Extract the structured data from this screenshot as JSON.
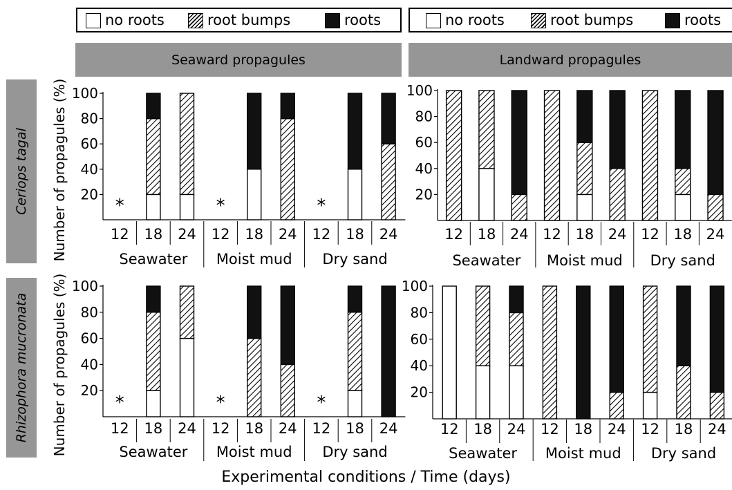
{
  "legend": {
    "no_roots": "no roots",
    "root_bumps": "root bumps",
    "roots": "roots"
  },
  "columns": [
    "Seaward propagules",
    "Landward propagules"
  ],
  "rows": [
    "Ceriops tagal",
    "Rhizophora mucronata"
  ],
  "ylabel": "Number of propagules (%)",
  "xtitle": "Experimental conditions / Time (days)",
  "missing_marker": "*",
  "colors": {
    "no_roots": "#ffffff",
    "roots": "#111111",
    "bumps_hatch": "#000000",
    "header_bg": "#969696"
  },
  "chart_data": [
    {
      "type": "bar",
      "stacked": true,
      "title": "",
      "row": "Ceriops tagal",
      "column": "Seaward propagules",
      "groups": [
        "Seawater",
        "Moist mud",
        "Dry sand"
      ],
      "categories": [
        "12",
        "18",
        "24",
        "12",
        "18",
        "24",
        "12",
        "18",
        "24"
      ],
      "ylim": [
        0,
        100
      ],
      "yticks": [
        20,
        40,
        60,
        80,
        100
      ],
      "ylabel": "Number of propagules (%)",
      "missing": [
        true,
        false,
        false,
        true,
        false,
        false,
        true,
        false,
        false
      ],
      "series": [
        {
          "name": "no roots",
          "values": [
            0,
            20,
            20,
            0,
            40,
            0,
            0,
            40,
            0
          ]
        },
        {
          "name": "root bumps",
          "values": [
            0,
            60,
            80,
            0,
            0,
            80,
            0,
            0,
            60
          ]
        },
        {
          "name": "roots",
          "values": [
            0,
            20,
            0,
            0,
            60,
            20,
            0,
            60,
            40
          ]
        }
      ]
    },
    {
      "type": "bar",
      "stacked": true,
      "title": "",
      "row": "Ceriops tagal",
      "column": "Landward propagules",
      "groups": [
        "Seawater",
        "Moist mud",
        "Dry sand"
      ],
      "categories": [
        "12",
        "18",
        "24",
        "12",
        "18",
        "24",
        "12",
        "18",
        "24"
      ],
      "ylim": [
        0,
        100
      ],
      "yticks": [
        20,
        40,
        60,
        80,
        100
      ],
      "ylabel": "",
      "missing": [
        false,
        false,
        false,
        false,
        false,
        false,
        false,
        false,
        false
      ],
      "series": [
        {
          "name": "no roots",
          "values": [
            0,
            40,
            0,
            0,
            20,
            0,
            0,
            20,
            0
          ]
        },
        {
          "name": "root bumps",
          "values": [
            100,
            60,
            20,
            100,
            40,
            40,
            100,
            20,
            20
          ]
        },
        {
          "name": "roots",
          "values": [
            0,
            0,
            80,
            0,
            40,
            60,
            0,
            60,
            80
          ]
        }
      ]
    },
    {
      "type": "bar",
      "stacked": true,
      "title": "",
      "row": "Rhizophora mucronata",
      "column": "Seaward propagules",
      "groups": [
        "Seawater",
        "Moist mud",
        "Dry sand"
      ],
      "categories": [
        "12",
        "18",
        "24",
        "12",
        "18",
        "24",
        "12",
        "18",
        "24"
      ],
      "ylim": [
        0,
        100
      ],
      "yticks": [
        20,
        40,
        60,
        80,
        100
      ],
      "ylabel": "Number of propagules (%)",
      "missing": [
        true,
        false,
        false,
        true,
        false,
        false,
        true,
        false,
        false
      ],
      "series": [
        {
          "name": "no roots",
          "values": [
            0,
            20,
            60,
            0,
            0,
            0,
            0,
            20,
            0
          ]
        },
        {
          "name": "root bumps",
          "values": [
            0,
            60,
            40,
            0,
            60,
            40,
            0,
            60,
            0
          ]
        },
        {
          "name": "roots",
          "values": [
            0,
            20,
            0,
            0,
            40,
            60,
            0,
            20,
            100
          ]
        }
      ]
    },
    {
      "type": "bar",
      "stacked": true,
      "title": "",
      "row": "Rhizophora mucronata",
      "column": "Landward propagules",
      "groups": [
        "Seawater",
        "Moist mud",
        "Dry sand"
      ],
      "categories": [
        "12",
        "18",
        "24",
        "12",
        "18",
        "24",
        "12",
        "18",
        "24"
      ],
      "ylim": [
        0,
        100
      ],
      "yticks": [
        20,
        40,
        60,
        80,
        100
      ],
      "ylabel": "",
      "missing": [
        false,
        false,
        false,
        false,
        false,
        false,
        false,
        false,
        false
      ],
      "series": [
        {
          "name": "no roots",
          "values": [
            100,
            40,
            40,
            0,
            0,
            0,
            20,
            0,
            0
          ]
        },
        {
          "name": "root bumps",
          "values": [
            0,
            60,
            40,
            100,
            0,
            20,
            80,
            40,
            20
          ]
        },
        {
          "name": "roots",
          "values": [
            0,
            0,
            20,
            0,
            100,
            80,
            0,
            60,
            80
          ]
        }
      ]
    }
  ]
}
